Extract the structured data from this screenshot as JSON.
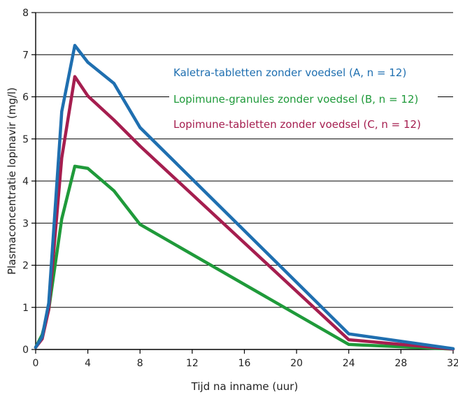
{
  "chart_data": {
    "type": "line",
    "title": "",
    "xlabel": "Tijd na inname (uur)",
    "ylabel": "Plasmaconcentratie lopinavir (mg/l)",
    "xlim": [
      0,
      32
    ],
    "ylim": [
      0,
      8
    ],
    "x_ticks": [
      "0",
      "4",
      "8",
      "12",
      "16",
      "20",
      "24",
      "28",
      "32"
    ],
    "y_ticks": [
      "0",
      "1",
      "2",
      "3",
      "4",
      "5",
      "6",
      "7",
      "8"
    ],
    "grid": "horizontal",
    "legend_position": "top-right",
    "series": [
      {
        "name": "Kaletra-tabletten zonder voedsel (A, n = 12)",
        "color": "#1f6fb0",
        "x": [
          0,
          0.5,
          1,
          2,
          3,
          4,
          6,
          8,
          24,
          32
        ],
        "y": [
          0.05,
          0.3,
          1.1,
          5.65,
          7.22,
          6.82,
          6.32,
          5.27,
          0.37,
          0.02
        ]
      },
      {
        "name": "Lopimune-granules zonder voedsel (B, n = 12)",
        "color": "#1f9a3a",
        "x": [
          0,
          0.5,
          1,
          2,
          3,
          4,
          6,
          8,
          24,
          32
        ],
        "y": [
          0.05,
          0.35,
          0.95,
          3.1,
          4.35,
          4.3,
          3.77,
          2.97,
          0.12,
          0.01
        ]
      },
      {
        "name": "Lopimune-tabletten zonder voedsel (C, n = 12)",
        "color": "#a51e4f",
        "x": [
          0,
          0.5,
          1,
          2,
          3,
          4,
          6,
          8,
          24,
          32
        ],
        "y": [
          0.05,
          0.25,
          0.95,
          4.55,
          6.48,
          6.02,
          5.45,
          4.83,
          0.23,
          0.01
        ]
      }
    ]
  }
}
